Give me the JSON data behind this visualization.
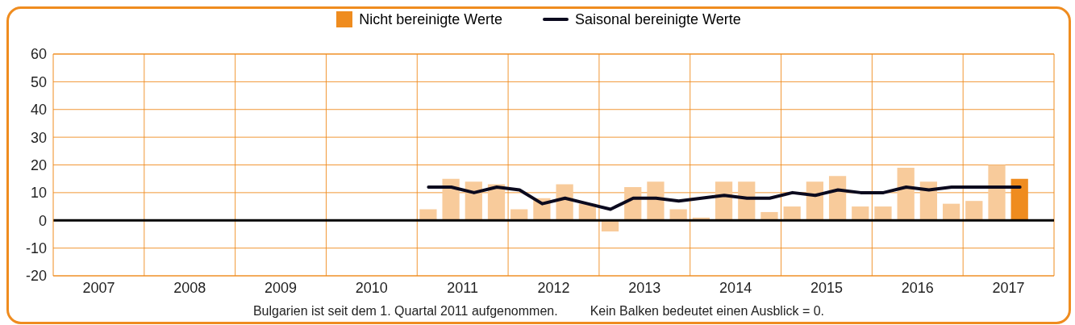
{
  "chart_data": {
    "type": "bar",
    "xlim": [
      2007,
      2018
    ],
    "xticks": [
      {
        "value": 2007.5,
        "label": "2007"
      },
      {
        "value": 2008,
        "label": null
      },
      {
        "value": 2008.5,
        "label": "2008"
      },
      {
        "value": 2009,
        "label": null
      },
      {
        "value": 2009.5,
        "label": "2009"
      },
      {
        "value": 2010,
        "label": null
      },
      {
        "value": 2010.5,
        "label": "2010"
      },
      {
        "value": 2011,
        "label": null
      },
      {
        "value": 2011.5,
        "label": "2011"
      },
      {
        "value": 2012,
        "label": null
      },
      {
        "value": 2012.5,
        "label": "2012"
      },
      {
        "value": 2013,
        "label": null
      },
      {
        "value": 2013.5,
        "label": "2013"
      },
      {
        "value": 2014,
        "label": null
      },
      {
        "value": 2014.5,
        "label": "2014"
      },
      {
        "value": 2015,
        "label": null
      },
      {
        "value": 2015.5,
        "label": "2015"
      },
      {
        "value": 2016,
        "label": null
      },
      {
        "value": 2016.5,
        "label": "2016"
      },
      {
        "value": 2017,
        "label": null
      },
      {
        "value": 2017.5,
        "label": "2017"
      }
    ],
    "x": [
      2011.125,
      2011.375,
      2011.625,
      2011.875,
      2012.125,
      2012.375,
      2012.625,
      2012.875,
      2013.125,
      2013.375,
      2013.625,
      2013.875,
      2014.125,
      2014.375,
      2014.625,
      2014.875,
      2015.125,
      2015.375,
      2015.625,
      2015.875,
      2016.125,
      2016.375,
      2016.625,
      2016.875,
      2017.125,
      2017.375,
      2017.625
    ],
    "ylim": [
      -20,
      60
    ],
    "yticks": [
      -20,
      -10,
      0,
      10,
      20,
      30,
      40,
      50,
      60
    ],
    "grid": true,
    "legend": "top",
    "series": [
      {
        "name": "Nicht bereinigte Werte",
        "color": "#ef8c1f",
        "colors": [
          "#f8cb9b",
          "#f8cb9b",
          "#f8cb9b",
          "#f8cb9b",
          "#f8cb9b",
          "#f8cb9b",
          "#f8cb9b",
          "#f8cb9b",
          "#f8cb9b",
          "#f8cb9b",
          "#f8cb9b",
          "#f8cb9b",
          "#f8cb9b",
          "#f8cb9b",
          "#f8cb9b",
          "#f8cb9b",
          "#f8cb9b",
          "#f8cb9b",
          "#f8cb9b",
          "#f8cb9b",
          "#f8cb9b",
          "#f8cb9b",
          "#f8cb9b",
          "#f8cb9b",
          "#f8cb9b",
          "#f8cb9b",
          "#ef8c1f"
        ],
        "values": [
          4,
          15,
          14,
          13,
          4,
          8,
          13,
          6,
          -4,
          12,
          14,
          4,
          1,
          14,
          14,
          3,
          5,
          14,
          16,
          5,
          5,
          19,
          14,
          6,
          7,
          20,
          15
        ]
      },
      {
        "name": "Saisonal bereinigte Werte",
        "type": "line",
        "color": "#0b0a1e",
        "values": [
          12,
          12,
          10,
          12,
          11,
          6,
          8,
          6,
          4,
          8,
          8,
          7,
          8,
          9,
          8,
          8,
          10,
          9,
          11,
          10,
          10,
          12,
          11,
          12,
          12,
          12,
          12
        ]
      }
    ],
    "ref_lines": [
      {
        "axis": "y",
        "value": 0,
        "color": "#000000"
      }
    ],
    "annotations": [
      "Bulgarien ist seit dem 1. Quartal 2011 aufgenommen.",
      "Kein Balken bedeutet einen Ausblick = 0."
    ]
  }
}
